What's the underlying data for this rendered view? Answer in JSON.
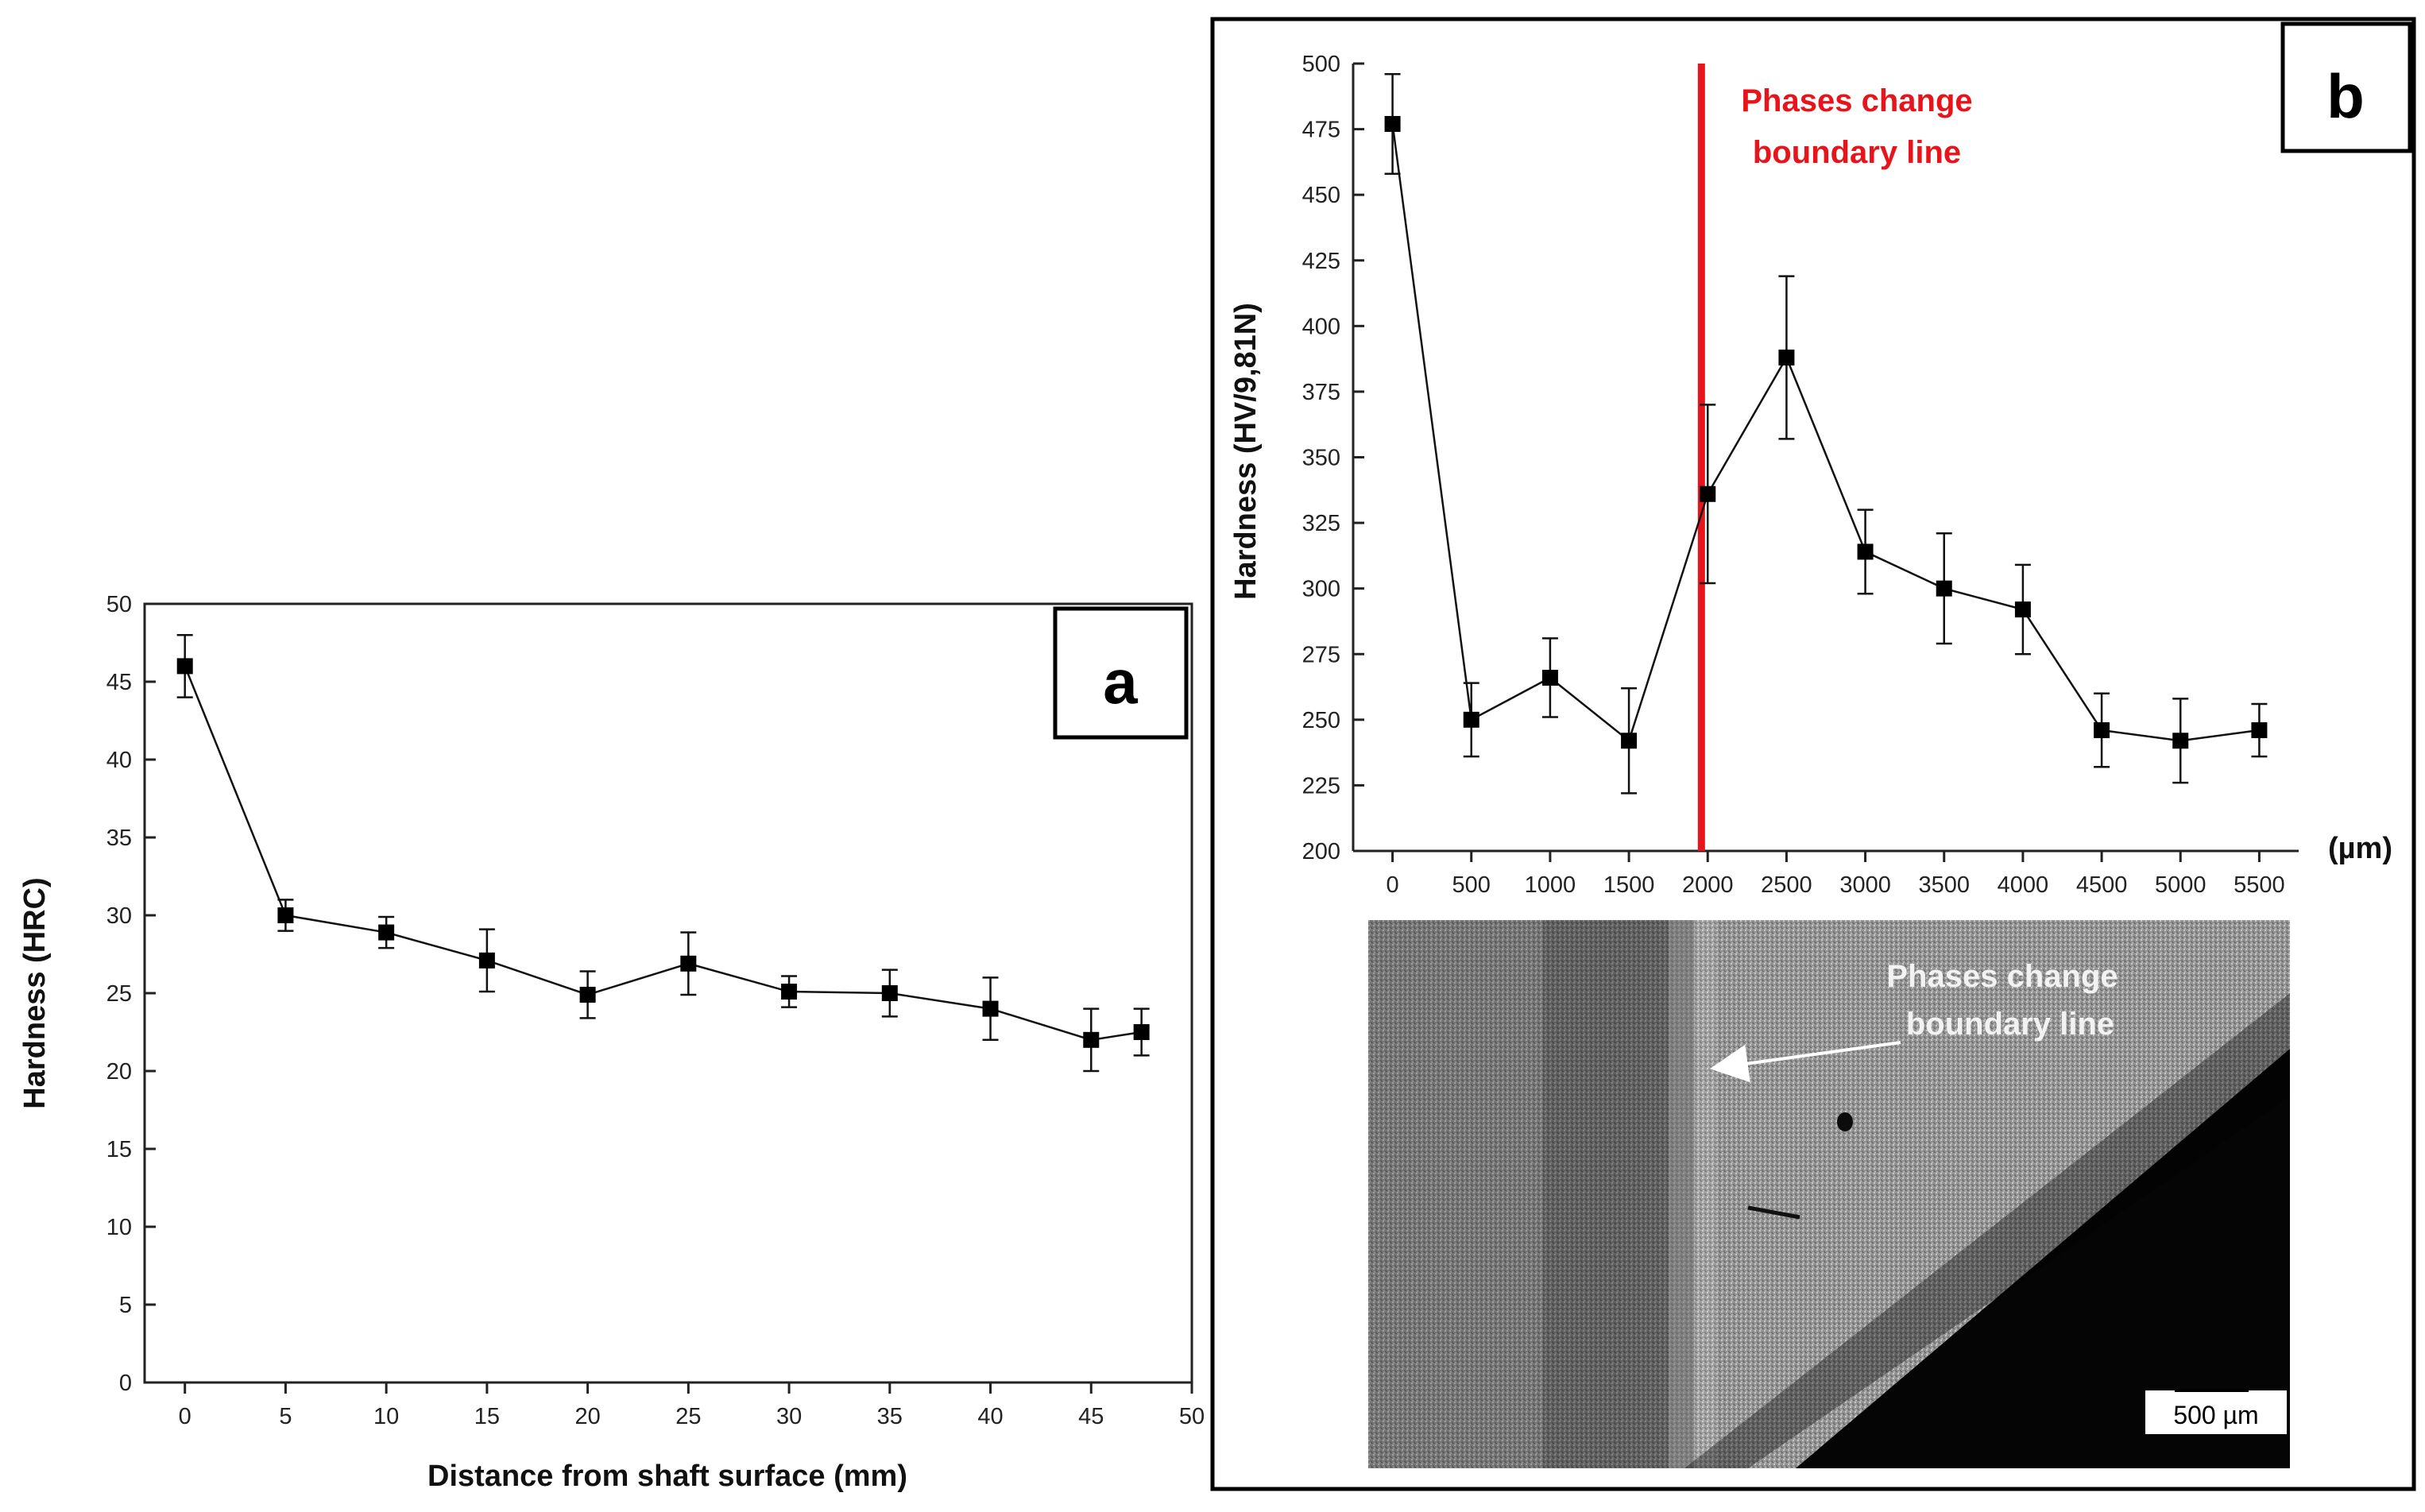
{
  "chart_data": [
    {
      "panel": "a",
      "type": "line",
      "title": "",
      "xlabel": "Distance from shaft surface (mm)",
      "ylabel": "Hardness (HRC)",
      "xlim": [
        -2,
        50
      ],
      "ylim": [
        0,
        50
      ],
      "xticks": [
        "0",
        "5",
        "10",
        "15",
        "20",
        "25",
        "30",
        "35",
        "40",
        "45",
        "50"
      ],
      "yticks": [
        "0",
        "5",
        "10",
        "15",
        "20",
        "25",
        "30",
        "35",
        "40",
        "45",
        "50"
      ],
      "series": [
        {
          "name": "Hardness",
          "x": [
            0,
            5,
            10,
            15,
            20,
            25,
            30,
            35,
            40,
            45,
            47.5
          ],
          "y": [
            46,
            30,
            28.9,
            27.1,
            24.9,
            26.9,
            25.1,
            25.0,
            24.0,
            22.0,
            22.5
          ],
          "err": [
            2.0,
            1.0,
            1.0,
            2.0,
            1.5,
            2.0,
            1.0,
            1.5,
            2.0,
            2.0,
            1.5
          ]
        }
      ]
    },
    {
      "panel": "b",
      "type": "line",
      "title": "",
      "xlabel": "(µm)",
      "ylabel": "Hardness (HV/9,81N)",
      "xlim": [
        -250,
        5750
      ],
      "ylim": [
        200,
        500
      ],
      "xticks": [
        "0",
        "500",
        "1000",
        "1500",
        "2000",
        "2500",
        "3000",
        "3500",
        "4000",
        "4500",
        "5000",
        "5500"
      ],
      "yticks": [
        "200",
        "225",
        "250",
        "275",
        "300",
        "325",
        "350",
        "375",
        "400",
        "425",
        "450",
        "475",
        "500"
      ],
      "series": [
        {
          "name": "Hardness",
          "x": [
            0,
            500,
            1000,
            1500,
            2000,
            2500,
            3000,
            3500,
            4000,
            4500,
            5000,
            5500
          ],
          "y": [
            477,
            250,
            266,
            242,
            336,
            388,
            314,
            300,
            292,
            246,
            242,
            246
          ],
          "err": [
            19,
            14,
            15,
            20,
            34,
            31,
            16,
            21,
            17,
            14,
            16,
            10
          ]
        }
      ],
      "boundary_x": 1960,
      "annotation": "Phases change\nboundary line"
    }
  ],
  "panel_a": {
    "letter": "a",
    "ylabel": "Hardness (HRC)",
    "xlabel": "Distance from shaft surface (mm)"
  },
  "panel_b": {
    "letter": "b",
    "ylabel": "Hardness (HV/9,81N)",
    "xunit": "(µm)",
    "annotation_line1": "Phases change",
    "annotation_line2": "boundary line",
    "micrograph_label_line1": "Phases change",
    "micrograph_label_line2": "boundary line",
    "scale_bar": "500 µm"
  },
  "colors": {
    "series": "#111111",
    "boundary": "#e8141b",
    "panel_frame": "#000000"
  }
}
